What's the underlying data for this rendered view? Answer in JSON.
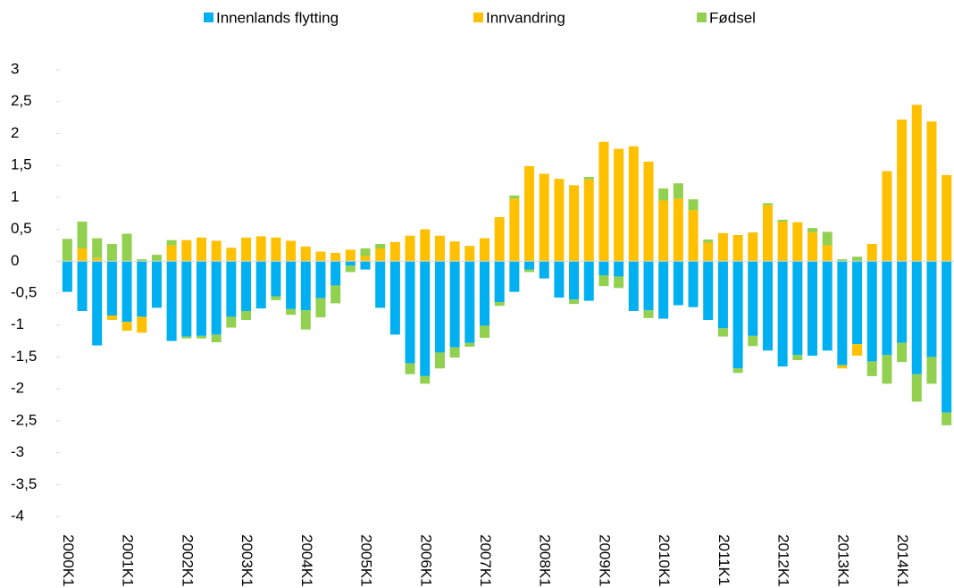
{
  "chart_data": {
    "type": "stacked_bar",
    "categories": [
      "2000K1",
      null,
      null,
      null,
      "2001K1",
      null,
      null,
      null,
      "2002K1",
      null,
      null,
      null,
      "2003K1",
      null,
      null,
      null,
      "2004K1",
      null,
      null,
      null,
      "2005K1",
      null,
      null,
      null,
      "2006K1",
      null,
      null,
      null,
      "2007K1",
      null,
      null,
      null,
      "2008K1",
      null,
      null,
      null,
      "2009K1",
      null,
      null,
      null,
      "2010K1",
      null,
      null,
      null,
      "2011K1",
      null,
      null,
      null,
      "2012K1",
      null,
      null,
      null,
      "2013K1",
      null,
      null,
      null,
      "2014K1",
      null,
      null,
      null
    ],
    "series": [
      {
        "name": "Innenlands flytting",
        "color": "#00b0f0",
        "values": [
          -0.48,
          -0.78,
          -1.32,
          -0.85,
          -0.95,
          -0.87,
          -0.73,
          -1.25,
          -1.18,
          -1.17,
          -1.15,
          -0.87,
          -0.78,
          -0.74,
          -0.55,
          -0.75,
          -0.77,
          -0.58,
          -0.38,
          -0.07,
          -0.13,
          -0.73,
          -1.15,
          -1.6,
          -1.8,
          -1.43,
          -1.35,
          -1.28,
          -1.01,
          -0.64,
          -0.48,
          -0.13,
          -0.27,
          -0.57,
          -0.6,
          -0.62,
          -0.22,
          -0.24,
          -0.78,
          -0.77,
          -0.9,
          -0.69,
          -0.72,
          -0.92,
          -1.05,
          -1.68,
          -1.17,
          -1.4,
          -1.65,
          -1.47,
          -1.48,
          -1.4,
          -1.63,
          -1.3,
          -1.57,
          -1.47,
          -1.28,
          -1.77,
          -1.5,
          -2.37
        ]
      },
      {
        "name": "Innvandring",
        "color": "#ffc000",
        "values": [
          0,
          0.2,
          0.05,
          -0.07,
          -0.14,
          -0.25,
          0,
          0.25,
          0.33,
          0.37,
          0.32,
          0.21,
          0.37,
          0.39,
          0.37,
          0.32,
          0.23,
          0.15,
          0.13,
          0.18,
          0.08,
          0.2,
          0.3,
          0.4,
          0.5,
          0.4,
          0.31,
          0.24,
          0.36,
          0.69,
          0.98,
          1.49,
          1.37,
          1.29,
          1.19,
          1.28,
          1.87,
          1.76,
          1.8,
          1.56,
          0.95,
          0.98,
          0.8,
          0.29,
          0.44,
          0.41,
          0.45,
          0.88,
          0.62,
          0.61,
          0.45,
          0.25,
          -0.05,
          -0.18,
          0.27,
          1.41,
          2.22,
          2.45,
          2.19,
          1.35
        ]
      },
      {
        "name": "Fødsel",
        "color": "#92d050",
        "values": [
          0.35,
          0.42,
          0.31,
          0.27,
          0.43,
          0.03,
          0.1,
          0.08,
          -0.03,
          -0.04,
          -0.12,
          -0.17,
          -0.14,
          0,
          -0.06,
          -0.09,
          -0.3,
          -0.3,
          -0.28,
          -0.1,
          0.12,
          0.07,
          0,
          -0.17,
          -0.12,
          -0.25,
          -0.16,
          -0.06,
          -0.19,
          -0.06,
          0.05,
          -0.04,
          0,
          0,
          -0.07,
          0.04,
          -0.17,
          -0.18,
          0,
          -0.12,
          0.19,
          0.24,
          0.17,
          0.05,
          -0.13,
          -0.07,
          -0.16,
          0.03,
          0.03,
          -0.08,
          0.07,
          0.21,
          0.03,
          0.07,
          -0.23,
          -0.45,
          -0.3,
          -0.43,
          -0.42,
          -0.2
        ]
      }
    ],
    "ylim": [
      -4,
      3
    ],
    "yticks": [
      3,
      {
        "value": 2.5,
        "label": "2,5"
      },
      2,
      {
        "value": 1.5,
        "label": "1,5"
      },
      1,
      {
        "value": 0.5,
        "label": "0,5"
      },
      0,
      {
        "value": -0.5,
        "label": "-0,5"
      },
      -1,
      {
        "value": -1.5,
        "label": "-1,5"
      },
      -2,
      {
        "value": -2.5,
        "label": "-2,5"
      },
      -3,
      {
        "value": -3.5,
        "label": "-3,5"
      },
      -4
    ],
    "grid": false,
    "legend": "top"
  }
}
